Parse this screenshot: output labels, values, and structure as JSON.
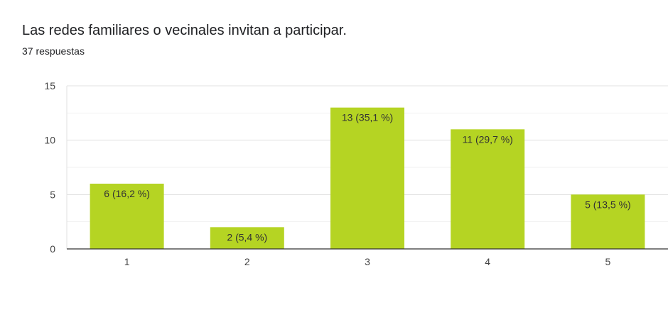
{
  "title": "Las redes familiares o vecinales invitan a participar.",
  "subtitle": "37 respuestas",
  "chart_data": {
    "type": "bar",
    "categories": [
      "1",
      "2",
      "3",
      "4",
      "5"
    ],
    "values": [
      6,
      2,
      13,
      11,
      5
    ],
    "data_labels": [
      "6 (16,2 %)",
      "2 (5,4 %)",
      "13 (35,1 %)",
      "11 (29,7 %)",
      "5 (13,5 %)"
    ],
    "yticks": [
      0,
      5,
      10,
      15
    ],
    "ylim": [
      0,
      15
    ],
    "bar_color": "#b5d423",
    "grid": true,
    "legend": "none"
  }
}
